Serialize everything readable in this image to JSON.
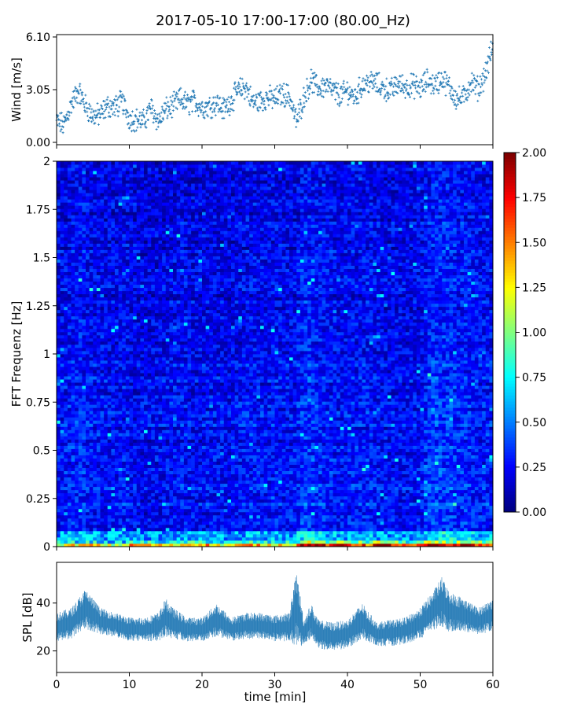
{
  "title": "2017-05-10 17:00-17:00 (80.00_Hz)",
  "chart_data": [
    {
      "type": "scatter",
      "name": "wind",
      "ylabel": "Wind [m/s]",
      "xlim": [
        0,
        60
      ],
      "ylim": [
        0,
        6.1
      ],
      "yticks": [
        0.0,
        3.05,
        6.1
      ],
      "ytick_labels": [
        "0.00",
        "3.05",
        "6.10"
      ],
      "marker": "+",
      "color": "#1f77b4",
      "sampled_points": [
        [
          0,
          1.2
        ],
        [
          1,
          1.0
        ],
        [
          2,
          2.2
        ],
        [
          3,
          3.0
        ],
        [
          4,
          2.1
        ],
        [
          5,
          1.5
        ],
        [
          6,
          1.6
        ],
        [
          7,
          2.1
        ],
        [
          8,
          2.0
        ],
        [
          9,
          2.4
        ],
        [
          10,
          1.4
        ],
        [
          11,
          1.3
        ],
        [
          12,
          1.2
        ],
        [
          13,
          2.0
        ],
        [
          14,
          1.2
        ],
        [
          15,
          1.9
        ],
        [
          16,
          2.1
        ],
        [
          17,
          2.5
        ],
        [
          18,
          2.2
        ],
        [
          19,
          2.4
        ],
        [
          20,
          2.0
        ],
        [
          21,
          2.1
        ],
        [
          22,
          2.3
        ],
        [
          23,
          1.9
        ],
        [
          24,
          2.4
        ],
        [
          25,
          3.0
        ],
        [
          26,
          3.2
        ],
        [
          27,
          2.3
        ],
        [
          28,
          2.4
        ],
        [
          29,
          2.6
        ],
        [
          30,
          2.5
        ],
        [
          31,
          2.8
        ],
        [
          32,
          2.7
        ],
        [
          33,
          1.2
        ],
        [
          34,
          2.6
        ],
        [
          35,
          3.6
        ],
        [
          36,
          3.1
        ],
        [
          37,
          3.3
        ],
        [
          38,
          3.0
        ],
        [
          39,
          2.7
        ],
        [
          40,
          3.0
        ],
        [
          41,
          2.6
        ],
        [
          42,
          3.3
        ],
        [
          43,
          3.5
        ],
        [
          44,
          3.4
        ],
        [
          45,
          3.1
        ],
        [
          46,
          3.0
        ],
        [
          47,
          3.4
        ],
        [
          48,
          3.2
        ],
        [
          49,
          3.3
        ],
        [
          50,
          3.1
        ],
        [
          51,
          3.6
        ],
        [
          52,
          3.3
        ],
        [
          53,
          3.7
        ],
        [
          54,
          3.2
        ],
        [
          55,
          2.5
        ],
        [
          56,
          2.6
        ],
        [
          57,
          3.5
        ],
        [
          58,
          3.1
        ],
        [
          59,
          4.0
        ],
        [
          60,
          5.6
        ]
      ]
    },
    {
      "type": "heatmap",
      "name": "spectrogram",
      "ylabel": "FFT Frequenz [Hz]",
      "xlim": [
        0,
        60
      ],
      "ylim": [
        0,
        2
      ],
      "yticks": [
        0,
        0.25,
        0.5,
        0.75,
        1,
        1.25,
        1.5,
        1.75,
        2
      ],
      "ytick_labels": [
        "0",
        "0.25",
        "0.5",
        "0.75",
        "1",
        "1.25",
        "1.5",
        "1.75",
        "2"
      ],
      "colormap": "jet",
      "color_range": [
        0.0,
        2.0
      ],
      "colorbar_ticks": [
        0.0,
        0.25,
        0.5,
        0.75,
        1.0,
        1.25,
        1.5,
        1.75,
        2.0
      ],
      "colorbar_tick_labels": [
        "0.00",
        "0.25",
        "0.50",
        "0.75",
        "1.00",
        "1.25",
        "1.50",
        "1.75",
        "2.00"
      ],
      "time_bin_minutes": 1,
      "mean_level_by_minute": [
        0.28,
        0.3,
        0.34,
        0.36,
        0.32,
        0.3,
        0.3,
        0.28,
        0.29,
        0.31,
        0.27,
        0.26,
        0.26,
        0.27,
        0.27,
        0.29,
        0.3,
        0.3,
        0.28,
        0.28,
        0.28,
        0.29,
        0.29,
        0.27,
        0.28,
        0.3,
        0.31,
        0.31,
        0.29,
        0.31,
        0.3,
        0.29,
        0.29,
        0.38,
        0.4,
        0.36,
        0.34,
        0.32,
        0.3,
        0.31,
        0.32,
        0.3,
        0.33,
        0.3,
        0.28,
        0.28,
        0.29,
        0.28,
        0.29,
        0.3,
        0.38,
        0.42,
        0.4,
        0.4,
        0.36,
        0.37,
        0.35,
        0.33,
        0.32,
        0.32
      ],
      "low_freq_band_level_by_minute": [
        1.2,
        1.2,
        1.3,
        1.3,
        1.4,
        1.3,
        1.2,
        1.1,
        1.1,
        1.2,
        1.5,
        1.5,
        1.4,
        1.3,
        1.3,
        1.2,
        1.2,
        1.5,
        1.4,
        1.5,
        1.5,
        1.3,
        1.2,
        1.2,
        1.3,
        1.4,
        1.5,
        1.4,
        1.3,
        1.3,
        1.4,
        1.3,
        1.3,
        2.0,
        2.0,
        2.0,
        1.8,
        1.5,
        1.9,
        1.9,
        1.6,
        1.7,
        1.5,
        2.0,
        2.0,
        1.8,
        1.6,
        1.5,
        1.4,
        1.5,
        2.0,
        1.8,
        1.9,
        1.7,
        1.9,
        2.0,
        1.9,
        1.6,
        1.5,
        1.7
      ]
    },
    {
      "type": "area",
      "name": "spl",
      "ylabel": "SPL [dB]",
      "xlabel": "time [min]",
      "xlim": [
        0,
        60
      ],
      "ylim": [
        11,
        57
      ],
      "yticks": [
        20,
        40
      ],
      "ytick_labels": [
        "20",
        "40"
      ],
      "xticks": [
        0,
        10,
        20,
        30,
        40,
        50,
        60
      ],
      "xtick_labels": [
        "0",
        "10",
        "20",
        "30",
        "40",
        "50",
        "60"
      ],
      "color": "#1f77b4",
      "samples": [
        {
          "x": 0,
          "low": 24,
          "high": 36
        },
        {
          "x": 2,
          "low": 25,
          "high": 38
        },
        {
          "x": 4,
          "low": 29,
          "high": 46
        },
        {
          "x": 6,
          "low": 27,
          "high": 38
        },
        {
          "x": 8,
          "low": 26,
          "high": 36
        },
        {
          "x": 10,
          "low": 24,
          "high": 34
        },
        {
          "x": 12,
          "low": 24,
          "high": 34
        },
        {
          "x": 14,
          "low": 24,
          "high": 36
        },
        {
          "x": 15,
          "low": 26,
          "high": 42
        },
        {
          "x": 16,
          "low": 25,
          "high": 38
        },
        {
          "x": 18,
          "low": 24,
          "high": 34
        },
        {
          "x": 20,
          "low": 24,
          "high": 34
        },
        {
          "x": 22,
          "low": 26,
          "high": 40
        },
        {
          "x": 24,
          "low": 24,
          "high": 34
        },
        {
          "x": 26,
          "low": 25,
          "high": 36
        },
        {
          "x": 28,
          "low": 25,
          "high": 36
        },
        {
          "x": 30,
          "low": 24,
          "high": 35
        },
        {
          "x": 32,
          "low": 24,
          "high": 36
        },
        {
          "x": 33,
          "low": 22,
          "high": 54
        },
        {
          "x": 34,
          "low": 22,
          "high": 33
        },
        {
          "x": 35,
          "low": 25,
          "high": 40
        },
        {
          "x": 36,
          "low": 21,
          "high": 33
        },
        {
          "x": 38,
          "low": 20,
          "high": 32
        },
        {
          "x": 40,
          "low": 21,
          "high": 33
        },
        {
          "x": 42,
          "low": 25,
          "high": 40
        },
        {
          "x": 44,
          "low": 22,
          "high": 32
        },
        {
          "x": 46,
          "low": 22,
          "high": 33
        },
        {
          "x": 48,
          "low": 23,
          "high": 34
        },
        {
          "x": 50,
          "low": 25,
          "high": 38
        },
        {
          "x": 52,
          "low": 29,
          "high": 46
        },
        {
          "x": 53,
          "low": 30,
          "high": 51
        },
        {
          "x": 54,
          "low": 28,
          "high": 45
        },
        {
          "x": 56,
          "low": 28,
          "high": 42
        },
        {
          "x": 58,
          "low": 27,
          "high": 38
        },
        {
          "x": 60,
          "low": 28,
          "high": 42
        }
      ]
    }
  ]
}
